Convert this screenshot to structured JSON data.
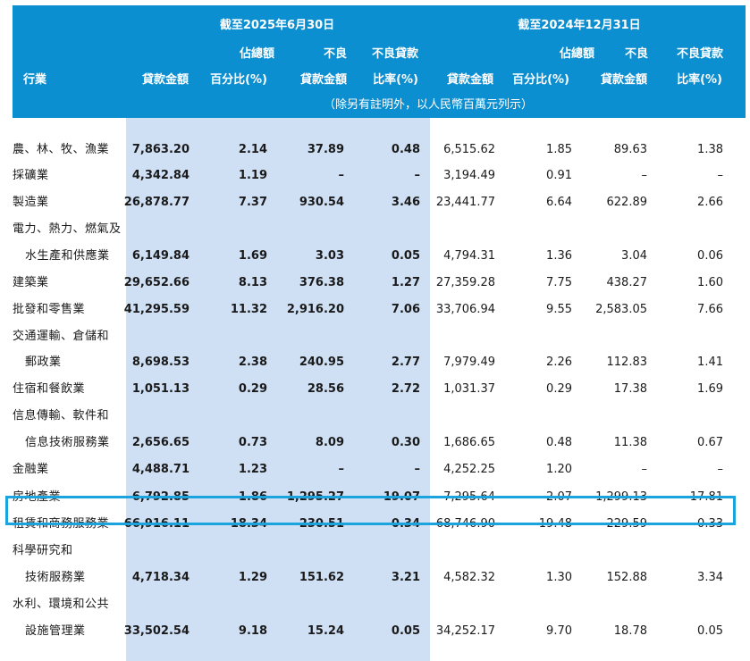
{
  "header": {
    "period1": "截至2025年6月30日",
    "period2": "截至2024年12月31日",
    "industry": "行業",
    "loan_amount": "貸款金額",
    "pct_line1": "佔總額",
    "pct_line2": "百分比(%)",
    "npl_line1": "不良",
    "npl_line2": "貸款金額",
    "ratio_line1": "不良貸款",
    "ratio_line2": "比率(%)",
    "note": "（除另有註明外，以人民幣百萬元列示）"
  },
  "rows": [
    {
      "label": "農、林、牧、漁業",
      "indent": false,
      "v": [
        "7,863.20",
        "2.14",
        "37.89",
        "0.48",
        "6,515.62",
        "1.85",
        "89.63",
        "1.38"
      ]
    },
    {
      "label": "採礦業",
      "indent": false,
      "v": [
        "4,342.84",
        "1.19",
        "–",
        "–",
        "3,194.49",
        "0.91",
        "–",
        "–"
      ]
    },
    {
      "label": "製造業",
      "indent": false,
      "v": [
        "26,878.77",
        "7.37",
        "930.54",
        "3.46",
        "23,441.77",
        "6.64",
        "622.89",
        "2.66"
      ]
    },
    {
      "label": "電力、熱力、燃氣及",
      "indent": false,
      "v": [
        "",
        "",
        "",
        "",
        "",
        "",
        "",
        ""
      ]
    },
    {
      "label": "水生產和供應業",
      "indent": true,
      "v": [
        "6,149.84",
        "1.69",
        "3.03",
        "0.05",
        "4,794.31",
        "1.36",
        "3.04",
        "0.06"
      ]
    },
    {
      "label": "建築業",
      "indent": false,
      "v": [
        "29,652.66",
        "8.13",
        "376.38",
        "1.27",
        "27,359.28",
        "7.75",
        "438.27",
        "1.60"
      ]
    },
    {
      "label": "批發和零售業",
      "indent": false,
      "v": [
        "41,295.59",
        "11.32",
        "2,916.20",
        "7.06",
        "33,706.94",
        "9.55",
        "2,583.05",
        "7.66"
      ]
    },
    {
      "label": "交通運輸、倉儲和",
      "indent": false,
      "v": [
        "",
        "",
        "",
        "",
        "",
        "",
        "",
        ""
      ]
    },
    {
      "label": "郵政業",
      "indent": true,
      "v": [
        "8,698.53",
        "2.38",
        "240.95",
        "2.77",
        "7,979.49",
        "2.26",
        "112.83",
        "1.41"
      ]
    },
    {
      "label": "住宿和餐飲業",
      "indent": false,
      "v": [
        "1,051.13",
        "0.29",
        "28.56",
        "2.72",
        "1,031.37",
        "0.29",
        "17.38",
        "1.69"
      ]
    },
    {
      "label": "信息傳輸、軟件和",
      "indent": false,
      "v": [
        "",
        "",
        "",
        "",
        "",
        "",
        "",
        ""
      ]
    },
    {
      "label": "信息技術服務業",
      "indent": true,
      "v": [
        "2,656.65",
        "0.73",
        "8.09",
        "0.30",
        "1,686.65",
        "0.48",
        "11.38",
        "0.67"
      ]
    },
    {
      "label": "金融業",
      "indent": false,
      "v": [
        "4,488.71",
        "1.23",
        "–",
        "–",
        "4,252.25",
        "1.20",
        "–",
        "–"
      ]
    },
    {
      "label": "房地產業",
      "indent": false,
      "v": [
        "6,792.85",
        "1.86",
        "1,295.27",
        "19.07",
        "7,295.64",
        "2.07",
        "1,299.13",
        "17.81"
      ]
    },
    {
      "label": "租賃和商務服務業",
      "indent": false,
      "v": [
        "66,916.11",
        "18.34",
        "230.51",
        "0.34",
        "68,746.90",
        "19.48",
        "229.59",
        "0.33"
      ]
    },
    {
      "label": "科學研究和",
      "indent": false,
      "v": [
        "",
        "",
        "",
        "",
        "",
        "",
        "",
        ""
      ]
    },
    {
      "label": "技術服務業",
      "indent": true,
      "v": [
        "4,718.34",
        "1.29",
        "151.62",
        "3.21",
        "4,582.32",
        "1.30",
        "152.88",
        "3.34"
      ]
    },
    {
      "label": "水利、環境和公共",
      "indent": false,
      "v": [
        "",
        "",
        "",
        "",
        "",
        "",
        "",
        ""
      ]
    },
    {
      "label": "設施管理業",
      "indent": true,
      "v": [
        "33,502.54",
        "9.18",
        "15.24",
        "0.05",
        "34,252.17",
        "9.70",
        "18.78",
        "0.05"
      ]
    }
  ]
}
